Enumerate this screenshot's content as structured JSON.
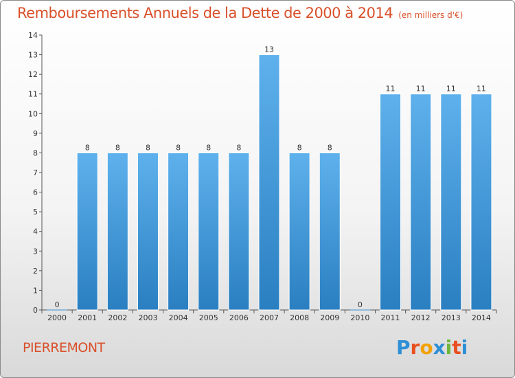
{
  "chart_data": {
    "type": "bar",
    "title": "Remboursements Annuels de la Dette de 2000 à 2014",
    "subtitle": "(en milliers d'€)",
    "categories": [
      "2000",
      "2001",
      "2002",
      "2003",
      "2004",
      "2005",
      "2006",
      "2007",
      "2008",
      "2009",
      "2010",
      "2011",
      "2012",
      "2013",
      "2014"
    ],
    "values": [
      0,
      8,
      8,
      8,
      8,
      8,
      8,
      13,
      8,
      8,
      0,
      11,
      11,
      11,
      11
    ],
    "yticks": [
      0,
      1,
      2,
      3,
      4,
      5,
      6,
      7,
      8,
      9,
      10,
      11,
      12,
      13,
      14
    ],
    "ylim": [
      0,
      14
    ],
    "xlabel": "",
    "ylabel": "",
    "grid": false,
    "bar_color_top": "#5eb1ec",
    "bar_color_bottom": "#2a7fc1"
  },
  "footer": {
    "commune": "PIERREMONT",
    "brand": "Proxiti",
    "brand_colors": [
      "#2d8fd5",
      "#e94f1f",
      "#f2a200",
      "#2d8fd5",
      "#6db63a",
      "#e94f1f",
      "#2d8fd5"
    ]
  }
}
